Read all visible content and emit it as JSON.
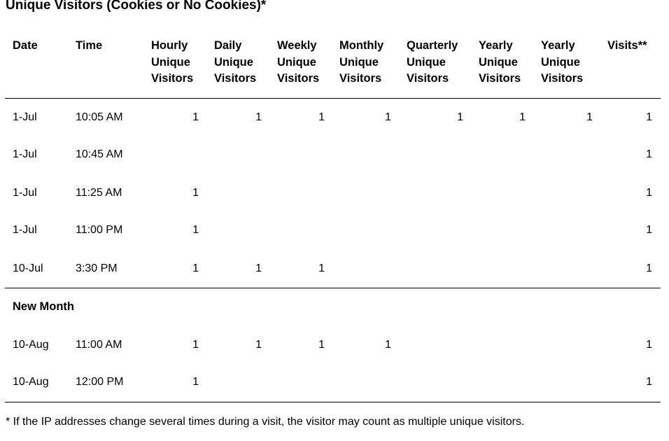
{
  "title": "Unique Visitors (Cookies or No Cookies)*",
  "headers": [
    [
      "Date"
    ],
    [
      "Time"
    ],
    [
      "Hourly",
      "Unique",
      "Visitors"
    ],
    [
      "Daily",
      "Unique",
      "Visitors"
    ],
    [
      "Weekly",
      "Unique",
      "Visitors"
    ],
    [
      "Monthly",
      "Unique",
      "Visitors"
    ],
    [
      "Quarterly",
      "Unique",
      "Visitors"
    ],
    [
      "Yearly",
      "Unique",
      "Visitors"
    ],
    [
      "Yearly",
      "Unique",
      "Visitors"
    ],
    [
      "Visits**"
    ]
  ],
  "rows": [
    {
      "date": "1-Jul",
      "time": "10:05 AM",
      "values": [
        "1",
        "1",
        "1",
        "1",
        "1",
        "1",
        "1",
        "1"
      ]
    },
    {
      "date": "1-Jul",
      "time": "10:45 AM",
      "values": [
        "",
        "",
        "",
        "",
        "",
        "",
        "",
        "1"
      ]
    },
    {
      "date": "1-Jul",
      "time": "11:25 AM",
      "values": [
        "1",
        "",
        "",
        "",
        "",
        "",
        "",
        "1"
      ]
    },
    {
      "date": "1-Jul",
      "time": "11:00 PM",
      "values": [
        "1",
        "",
        "",
        "",
        "",
        "",
        "",
        "1"
      ]
    },
    {
      "date": "10-Jul",
      "time": "3:30 PM",
      "values": [
        "1",
        "1",
        "1",
        "",
        "",
        "",
        "",
        "1"
      ]
    }
  ],
  "section_label": "New Month",
  "rows2": [
    {
      "date": "10-Aug",
      "time": "11:00 AM",
      "values": [
        "1",
        "1",
        "1",
        "1",
        "",
        "",
        "",
        "1"
      ]
    },
    {
      "date": "10-Aug",
      "time": "12:00 PM",
      "values": [
        "1",
        "",
        "",
        "",
        "",
        "",
        "",
        "1"
      ]
    }
  ],
  "footnote": "* If the IP addresses change several times during a visit, the visitor may count as multiple unique visitors."
}
